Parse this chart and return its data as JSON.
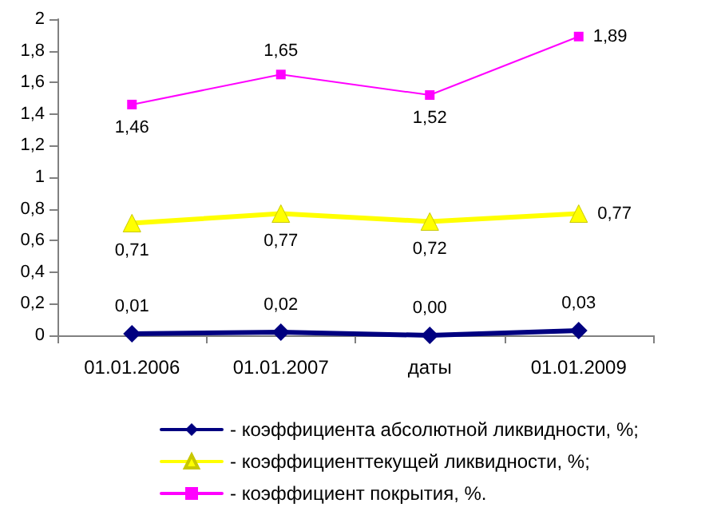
{
  "chart_data": {
    "type": "line",
    "categories": [
      "01.01.2006",
      "01.01.2007",
      "даты",
      "01.01.2009"
    ],
    "series": [
      {
        "name": "- коэффициента абсолютной ликвидности, %;",
        "color": "#000080",
        "marker": "diamond",
        "values": [
          0.01,
          0.02,
          0.0,
          0.03
        ],
        "value_labels": [
          "0,01",
          "0,02",
          "0,00",
          "0,03"
        ]
      },
      {
        "name": "- коэффициенттекущей ликвидности, %;",
        "color": "#ffff00",
        "marker": "triangle",
        "values": [
          0.71,
          0.77,
          0.72,
          0.77
        ],
        "value_labels": [
          "0,71",
          "0,77",
          "0,72",
          "0,77"
        ]
      },
      {
        "name": "- коэффициент покрытия, %.",
        "color": "#ff00ff",
        "marker": "square",
        "values": [
          1.46,
          1.65,
          1.52,
          1.89
        ],
        "value_labels": [
          "1,46",
          "1,65",
          "1,52",
          "1,89"
        ]
      }
    ],
    "ylim": [
      0,
      2
    ],
    "yticks": [
      0,
      {
        "value": 0.2,
        "label": "0,2"
      },
      {
        "value": 0.4,
        "label": "0,4"
      },
      {
        "value": 0.6,
        "label": "0,6"
      },
      {
        "value": 0.8,
        "label": "0,8"
      },
      1,
      {
        "value": 1.2,
        "label": "1,2"
      },
      {
        "value": 1.4,
        "label": "1,4"
      },
      {
        "value": 1.6,
        "label": "1,6"
      },
      {
        "value": 1.8,
        "label": "1,8"
      },
      2
    ],
    "grid": false,
    "legend": "bottom"
  }
}
